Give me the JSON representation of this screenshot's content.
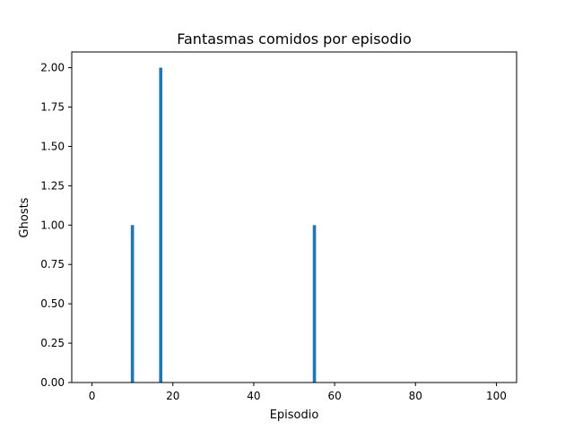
{
  "chart_data": {
    "type": "bar",
    "title": "Fantasmas comidos por episodio",
    "xlabel": "Episodio",
    "ylabel": "Ghosts",
    "x": [
      10,
      17,
      55
    ],
    "values": [
      1,
      2,
      1
    ],
    "xlim": [
      -5,
      105
    ],
    "ylim": [
      0,
      2.1
    ],
    "xticks": [
      0,
      20,
      40,
      60,
      80,
      100
    ],
    "xtick_labels": [
      "0",
      "20",
      "40",
      "60",
      "80",
      "100"
    ],
    "yticks": [
      0,
      0.25,
      0.5,
      0.75,
      1.0,
      1.25,
      1.5,
      1.75,
      2.0
    ],
    "ytick_labels": [
      "0.00",
      "0.25",
      "0.50",
      "0.75",
      "1.00",
      "1.25",
      "1.50",
      "1.75",
      "2.00"
    ],
    "grid": false,
    "bar_color": "#1f77b4",
    "bar_width": 0.8
  }
}
